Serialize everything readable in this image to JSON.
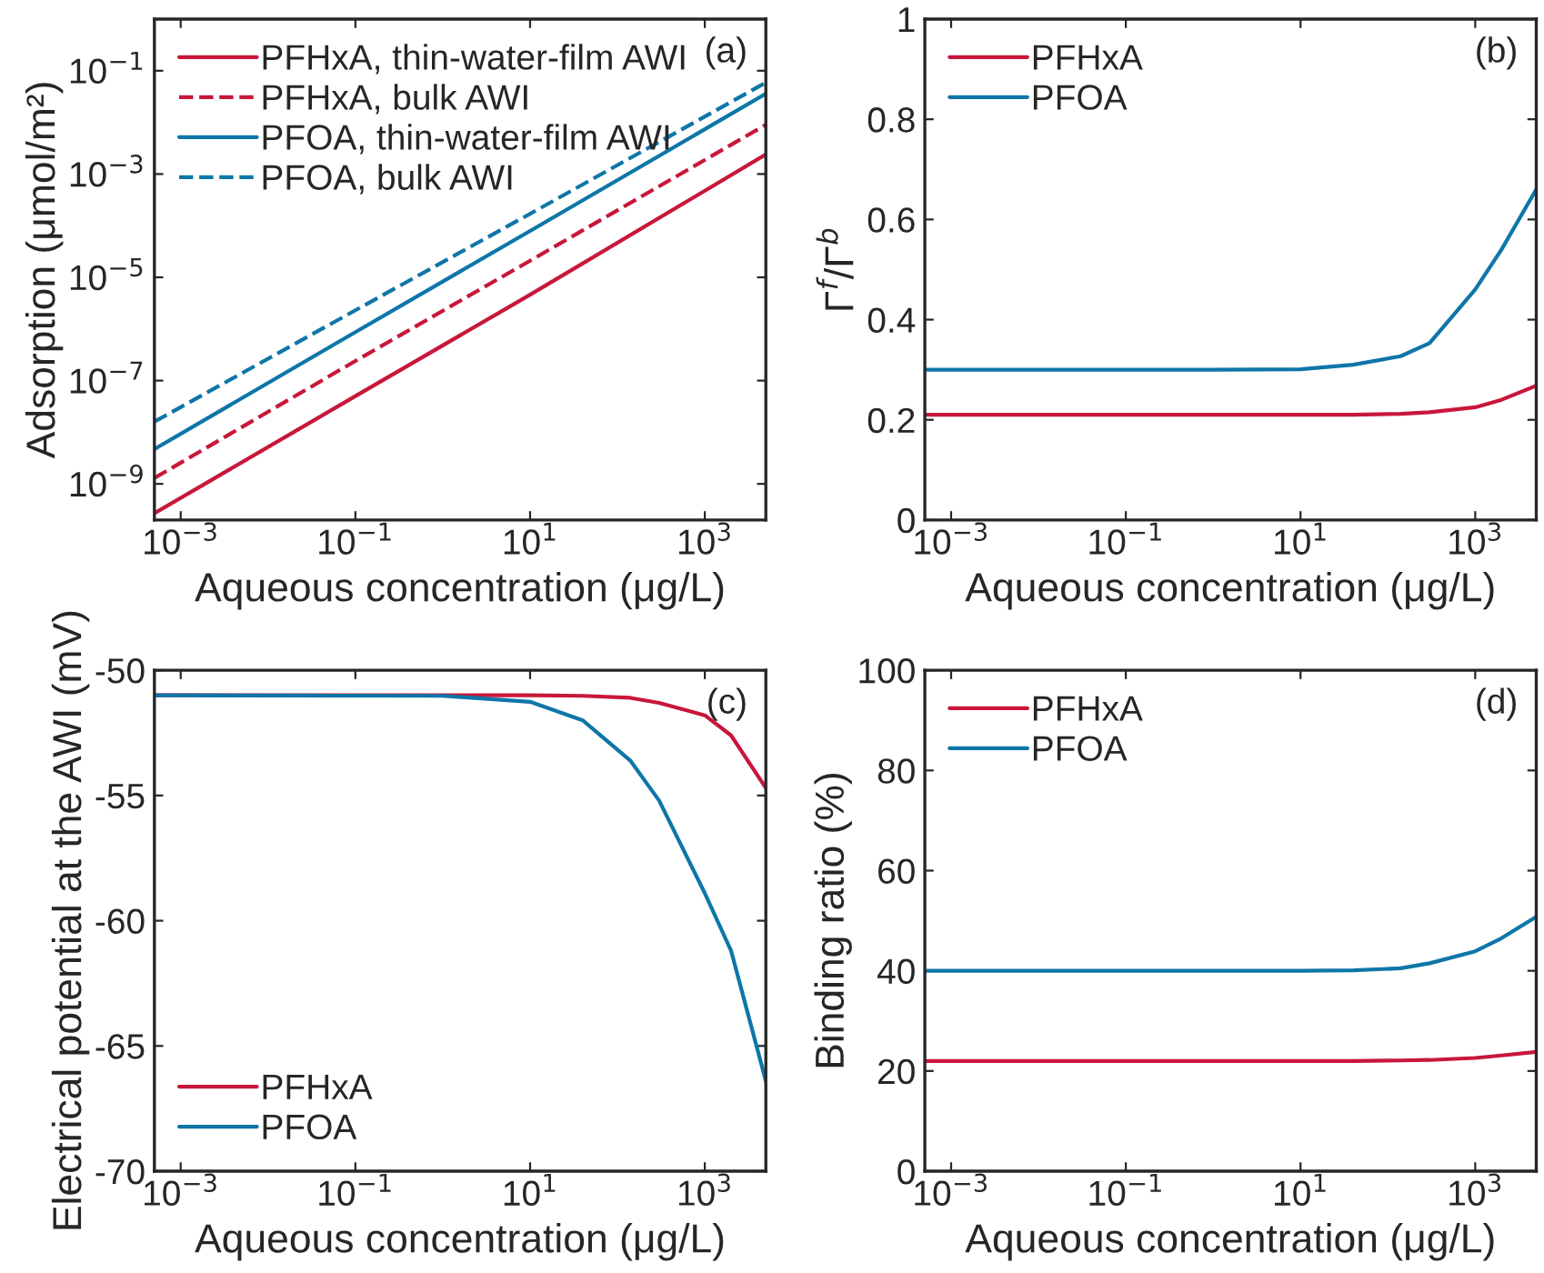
{
  "chart_data": [
    {
      "type": "line",
      "annotations": [
        "(a)"
      ],
      "xlabel": "Aqueous concentration (μg/L)",
      "ylabel": "Adsorption (μmol/m²)",
      "log": "xy",
      "legend": "top left",
      "xlim": [
        0.0005,
        5000
      ],
      "xticks": [
        {
          "value": 0.001,
          "label": "10$^{−3}$"
        },
        {
          "value": 0.1,
          "label": "10$^{−1}$"
        },
        {
          "value": 10,
          "label": "10$^{1}$"
        },
        {
          "value": 1000,
          "label": "10$^{3}$"
        }
      ],
      "ylim": [
        2e-10,
        1
      ],
      "yticks": [
        {
          "value": 1e-09,
          "label": "10$^{−9}$"
        },
        {
          "value": 1e-07,
          "label": "10$^{−7}$"
        },
        {
          "value": 1e-05,
          "label": "10$^{−5}$"
        },
        {
          "value": 0.001,
          "label": "10$^{−3}$"
        },
        {
          "value": 0.1,
          "label": "10$^{−1}$"
        }
      ],
      "x": [
        0.0005,
        0.1,
        10,
        5000
      ],
      "series": [
        {
          "name": "PFHxA, thin-water-film AWI",
          "color": "#c8173a",
          "line_style": "solid",
          "values": [
            2.7e-10,
            5e-08,
            4.6e-06,
            0.0024
          ]
        },
        {
          "name": "PFHxA, bulk AWI",
          "color": "#c8173a",
          "line_style": "dashed",
          "values": [
            1.3e-09,
            2.4e-07,
            2.1e-05,
            0.009
          ]
        },
        {
          "name": "PFOA, thin-water-film AWI",
          "color": "#0e76a8",
          "line_style": "solid",
          "values": [
            4.7e-09,
            8.7e-07,
            7.9e-05,
            0.036
          ]
        },
        {
          "name": "PFOA, bulk AWI",
          "color": "#0e76a8",
          "line_style": "dashed",
          "values": [
            1.6e-08,
            2.3e-06,
            0.00017,
            0.059
          ]
        }
      ]
    },
    {
      "type": "line",
      "annotations": [
        "(b)"
      ],
      "xlabel": "Aqueous concentration (μg/L)",
      "ylabel": "Γ$^{f}$/Γ$^{b}$",
      "log": "x",
      "legend": "top left",
      "xlim": [
        0.0005,
        5000
      ],
      "xticks": [
        {
          "value": 0.001,
          "label": "10$^{−3}$"
        },
        {
          "value": 0.1,
          "label": "10$^{−1}$"
        },
        {
          "value": 10,
          "label": "10$^{1}$"
        },
        {
          "value": 1000,
          "label": "10$^{3}$"
        }
      ],
      "ylim": [
        0,
        1
      ],
      "yticks": [
        0,
        0.2,
        0.4,
        0.6,
        0.8,
        1
      ],
      "x": [
        0.0005,
        1,
        10,
        40,
        140,
        300,
        1000,
        2000,
        5000
      ],
      "series": [
        {
          "name": "PFHxA",
          "color": "#c8173a",
          "line_style": "solid",
          "values": [
            0.21,
            0.21,
            0.21,
            0.21,
            0.212,
            0.215,
            0.225,
            0.24,
            0.268
          ]
        },
        {
          "name": "PFOA",
          "color": "#0e76a8",
          "line_style": "solid",
          "values": [
            0.3,
            0.3,
            0.301,
            0.31,
            0.327,
            0.353,
            0.46,
            0.54,
            0.66
          ]
        }
      ]
    },
    {
      "type": "line",
      "annotations": [
        "(c)"
      ],
      "xlabel": "Aqueous concentration (μg/L)",
      "ylabel": "Electrical potential at the AWI (mV)",
      "log": "x",
      "legend": "bottom left",
      "xlim": [
        0.0005,
        5000
      ],
      "xticks": [
        {
          "value": 0.001,
          "label": "10$^{−3}$"
        },
        {
          "value": 0.1,
          "label": "10$^{−1}$"
        },
        {
          "value": 10,
          "label": "10$^{1}$"
        },
        {
          "value": 1000,
          "label": "10$^{3}$"
        }
      ],
      "ylim": [
        -70,
        -50
      ],
      "yticks": [
        -70,
        -65,
        -60,
        -55,
        -50
      ],
      "x": [
        0.0005,
        1,
        10,
        40,
        140,
        300,
        1000,
        2000,
        5000
      ],
      "series": [
        {
          "name": "PFHxA",
          "color": "#c8173a",
          "line_style": "solid",
          "values": [
            -51,
            -51,
            -51,
            -51.02,
            -51.1,
            -51.3,
            -51.8,
            -52.6,
            -54.7
          ]
        },
        {
          "name": "PFOA",
          "color": "#0e76a8",
          "line_style": "solid",
          "values": [
            -51,
            -51.02,
            -51.26,
            -52.0,
            -53.6,
            -55.2,
            -58.9,
            -61.2,
            -66.4
          ]
        }
      ]
    },
    {
      "type": "line",
      "annotations": [
        "(d)"
      ],
      "xlabel": "Aqueous concentration (μg/L)",
      "ylabel": "Binding ratio (%)",
      "log": "x",
      "legend": "top left",
      "xlim": [
        0.0005,
        5000
      ],
      "xticks": [
        {
          "value": 0.001,
          "label": "10$^{−3}$"
        },
        {
          "value": 0.1,
          "label": "10$^{−1}$"
        },
        {
          "value": 10,
          "label": "10$^{1}$"
        },
        {
          "value": 1000,
          "label": "10$^{3}$"
        }
      ],
      "ylim": [
        0,
        100
      ],
      "yticks": [
        0,
        20,
        40,
        60,
        80,
        100
      ],
      "x": [
        0.0005,
        1,
        10,
        40,
        140,
        300,
        1000,
        2000,
        5000
      ],
      "series": [
        {
          "name": "PFHxA",
          "color": "#c8173a",
          "line_style": "solid",
          "values": [
            22,
            22,
            22,
            22,
            22.1,
            22.2,
            22.6,
            23.1,
            23.8
          ]
        },
        {
          "name": "PFOA",
          "color": "#0e76a8",
          "line_style": "solid",
          "values": [
            40,
            40,
            40,
            40.1,
            40.5,
            41.5,
            43.9,
            46.5,
            50.8
          ]
        }
      ]
    }
  ]
}
